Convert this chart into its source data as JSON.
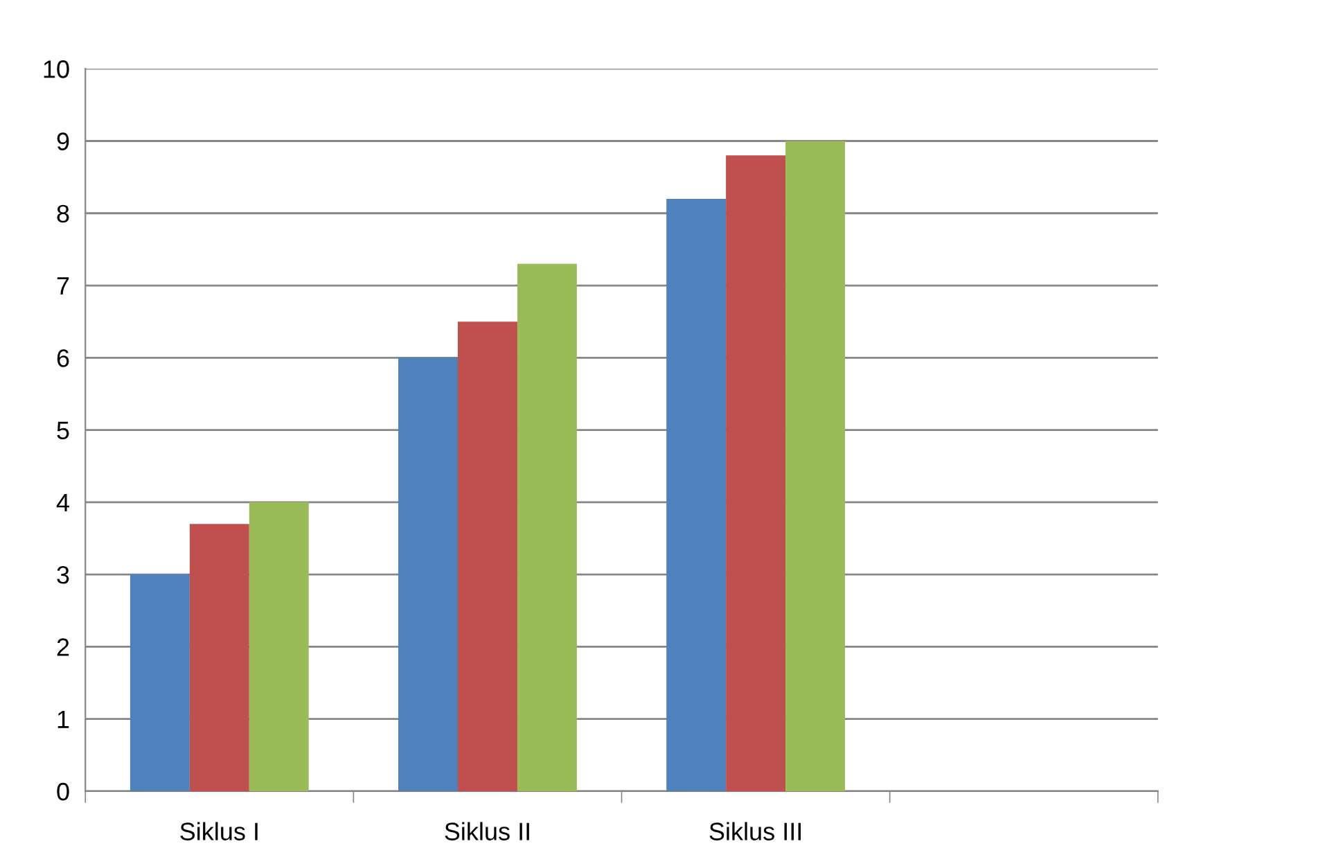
{
  "chart_data": {
    "type": "bar",
    "categories": [
      "Siklus I",
      "Siklus II",
      "Siklus III",
      null
    ],
    "series": [
      {
        "color": "#4f81bd",
        "values": [
          3.0,
          6.0,
          8.2,
          null
        ]
      },
      {
        "color": "#c0504d",
        "values": [
          3.7,
          6.5,
          8.8,
          null
        ]
      },
      {
        "color": "#9bbb59",
        "values": [
          4.0,
          7.3,
          9.0,
          null
        ]
      }
    ],
    "ylim": [
      0,
      10
    ],
    "yticks": [
      0,
      1,
      2,
      3,
      4,
      5,
      6,
      7,
      8,
      9,
      10
    ],
    "grid": "y",
    "legend": false
  }
}
